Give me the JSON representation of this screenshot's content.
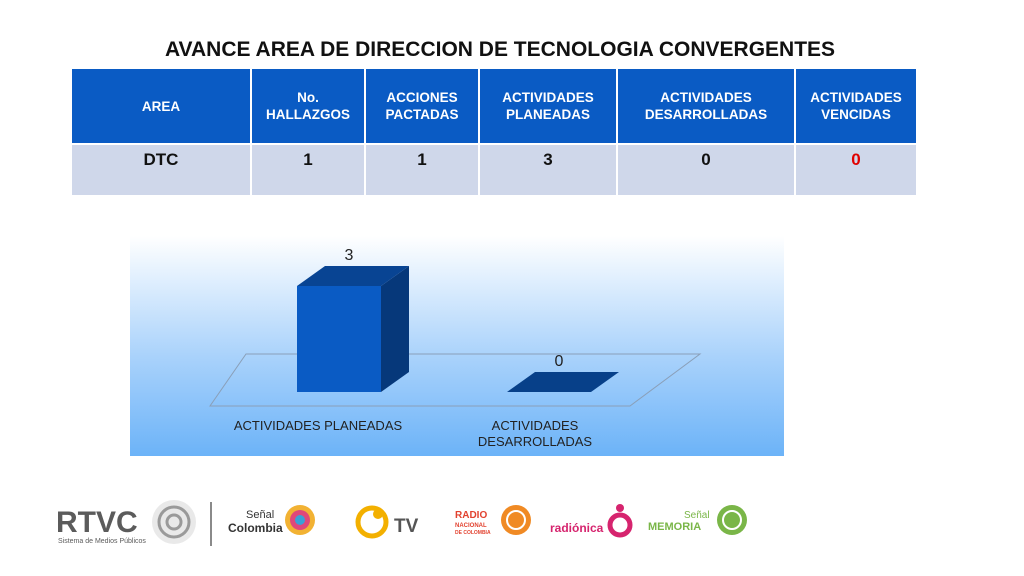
{
  "page": {
    "title": "AVANCE AREA DE DIRECCION DE TECNOLOGIA CONVERGENTES"
  },
  "table": {
    "headers": [
      [
        "AREA"
      ],
      [
        "No.",
        "HALLAZGOS"
      ],
      [
        "ACCIONES",
        "PACTADAS"
      ],
      [
        "ACTIVIDADES",
        "PLANEADAS"
      ],
      [
        "ACTIVIDADES",
        "DESARROLLADAS"
      ],
      [
        "ACTIVIDADES",
        "VENCIDAS"
      ]
    ],
    "row": [
      "DTC",
      "1",
      "1",
      "3",
      "0",
      "0"
    ],
    "highlight_color": "#e00000"
  },
  "chart_data": {
    "type": "bar",
    "categories": [
      [
        "ACTIVIDADES PLANEADAS"
      ],
      [
        "ACTIVIDADES",
        "DESARROLLADAS"
      ]
    ],
    "values": [
      3,
      0
    ],
    "data_labels": [
      "3",
      "0"
    ],
    "ylim": [
      0,
      3
    ],
    "bar_color": "#0a5bc4"
  },
  "footer": {
    "rtvc": {
      "name": "RTVC",
      "tagline": "Sistema de Medios Públicos"
    },
    "senal_colombia": [
      "Señal",
      "Colombia"
    ],
    "tv": "TV",
    "radio_nacional": [
      "RADIO",
      "NACIONAL",
      "DE COLOMBIA"
    ],
    "radionica": "radiónica",
    "senal_memoria": [
      "Señal",
      "MEMORIA"
    ]
  }
}
